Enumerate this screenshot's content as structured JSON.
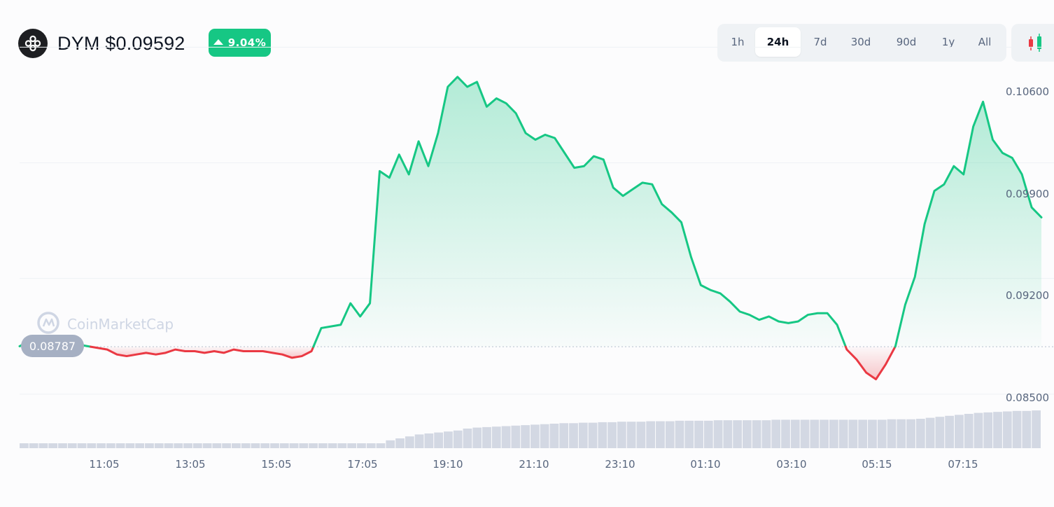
{
  "header": {
    "title": "DYM $0.09592",
    "change": "9.04%",
    "ranges": [
      "1h",
      "24h",
      "7d",
      "30d",
      "90d",
      "1y",
      "All"
    ],
    "active_range": "24h"
  },
  "watermark": "CoinMarketCap",
  "colors": {
    "up": "#16c784",
    "down": "#ea3943",
    "grid": "#eff2f5",
    "axis_text": "#58667e"
  },
  "chart_data": {
    "type": "area",
    "title": "DYM $0.09592",
    "xlabel": "",
    "ylabel": "",
    "ylim": [
      0.083,
      0.1075
    ],
    "y_ticks": [
      "0.10600",
      "0.09900",
      "0.09200",
      "0.08500"
    ],
    "x_ticks": [
      "11:05",
      "13:05",
      "15:05",
      "17:05",
      "19:10",
      "21:10",
      "23:10",
      "01:10",
      "03:10",
      "05:15",
      "07:15"
    ],
    "baseline": 0.08787,
    "baseline_label": "0.08787",
    "grid": true,
    "series": [
      {
        "values": [
          0.0879,
          0.0882,
          0.0884,
          0.0883,
          0.0881,
          0.088,
          0.088,
          0.0879,
          0.0878,
          0.0877,
          0.0874,
          0.0873,
          0.0874,
          0.0875,
          0.0874,
          0.0875,
          0.0877,
          0.0876,
          0.0876,
          0.0875,
          0.0876,
          0.0875,
          0.0877,
          0.0876,
          0.0876,
          0.0876,
          0.0875,
          0.0874,
          0.0872,
          0.0873,
          0.0876,
          0.089,
          0.0891,
          0.0892,
          0.0905,
          0.0897,
          0.0905,
          0.0985,
          0.0981,
          0.0995,
          0.0983,
          0.1003,
          0.0988,
          0.1008,
          0.1036,
          0.1042,
          0.1036,
          0.1039,
          0.1024,
          0.1029,
          0.1026,
          0.102,
          0.1008,
          0.1004,
          0.1007,
          0.1005,
          0.0996,
          0.0987,
          0.0988,
          0.0994,
          0.0992,
          0.0975,
          0.097,
          0.0974,
          0.0978,
          0.0977,
          0.0965,
          0.096,
          0.0954,
          0.0933,
          0.0916,
          0.0913,
          0.0911,
          0.0906,
          0.09,
          0.0898,
          0.0895,
          0.0897,
          0.0894,
          0.0893,
          0.0894,
          0.0898,
          0.0899,
          0.0899,
          0.0892,
          0.0877,
          0.0871,
          0.0863,
          0.0859,
          0.0868,
          0.0879,
          0.0904,
          0.0921,
          0.0953,
          0.0973,
          0.0977,
          0.0988,
          0.0983,
          0.1012,
          0.1027,
          0.1004,
          0.0996,
          0.0993,
          0.0983,
          0.0963,
          0.0957
        ]
      }
    ],
    "volume": [
      0.1,
      0.1,
      0.1,
      0.1,
      0.1,
      0.1,
      0.1,
      0.1,
      0.1,
      0.1,
      0.1,
      0.1,
      0.1,
      0.1,
      0.1,
      0.1,
      0.1,
      0.1,
      0.1,
      0.1,
      0.1,
      0.1,
      0.1,
      0.1,
      0.1,
      0.1,
      0.1,
      0.1,
      0.1,
      0.1,
      0.1,
      0.1,
      0.1,
      0.1,
      0.1,
      0.1,
      0.1,
      0.1,
      0.16,
      0.2,
      0.24,
      0.28,
      0.3,
      0.32,
      0.34,
      0.36,
      0.4,
      0.42,
      0.43,
      0.44,
      0.45,
      0.46,
      0.47,
      0.48,
      0.49,
      0.5,
      0.51,
      0.51,
      0.52,
      0.52,
      0.53,
      0.53,
      0.54,
      0.54,
      0.54,
      0.55,
      0.55,
      0.55,
      0.56,
      0.56,
      0.56,
      0.56,
      0.57,
      0.57,
      0.57,
      0.57,
      0.57,
      0.57,
      0.58,
      0.58,
      0.58,
      0.58,
      0.58,
      0.58,
      0.58,
      0.58,
      0.58,
      0.58,
      0.58,
      0.58,
      0.59,
      0.59,
      0.59,
      0.6,
      0.62,
      0.64,
      0.66,
      0.68,
      0.7,
      0.72,
      0.73,
      0.74,
      0.75,
      0.76,
      0.76,
      0.77
    ]
  }
}
